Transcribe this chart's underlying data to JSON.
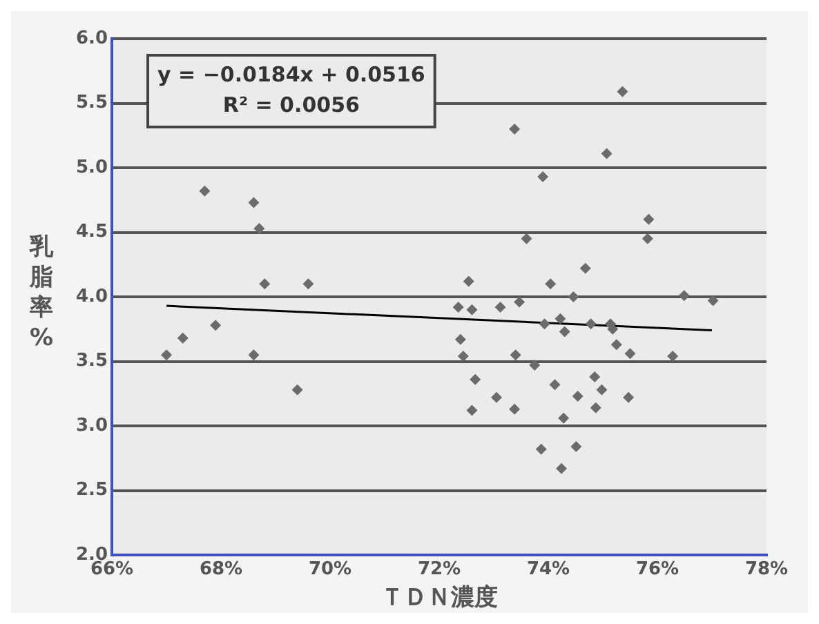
{
  "chart_data": {
    "type": "scatter",
    "xlabel": "ＴＤＮ濃度",
    "ylabel": "乳脂率%",
    "annotations": [
      "y = −0.0184x + 0.0516",
      "R² = 0.0056"
    ],
    "xlim": [
      66,
      78
    ],
    "xticks": [
      {
        "value": 66,
        "label": "66%"
      },
      {
        "value": 68,
        "label": "68%"
      },
      {
        "value": 70,
        "label": "70%"
      },
      {
        "value": 72,
        "label": "72%"
      },
      {
        "value": 74,
        "label": "74%"
      },
      {
        "value": 76,
        "label": "76%"
      },
      {
        "value": 78,
        "label": "78%"
      }
    ],
    "ylim": [
      2,
      6
    ],
    "yticks": [
      {
        "value": 2,
        "label": "2.0"
      },
      {
        "value": 2.5,
        "label": "2.5"
      },
      {
        "value": 3,
        "label": "3.0"
      },
      {
        "value": 3.5,
        "label": "3.5"
      },
      {
        "value": 4,
        "label": "4.0"
      },
      {
        "value": 4.5,
        "label": "4.5"
      },
      {
        "value": 5,
        "label": "5.0"
      },
      {
        "value": 5.5,
        "label": "5.5"
      },
      {
        "value": 6,
        "label": "6.0"
      }
    ],
    "grid": "y",
    "legend": false,
    "marker": "diamond",
    "series": [
      {
        "type": "scatter",
        "color": "#6b6b6b",
        "x": [
          67.0,
          67.3,
          67.7,
          67.9,
          68.6,
          68.7,
          68.6,
          68.8,
          69.4,
          69.6,
          75.36,
          73.38,
          75.07,
          73.9,
          75.84,
          75.82,
          73.6,
          74.68,
          72.54,
          74.04,
          74.46,
          76.49,
          77.02,
          73.47,
          73.12,
          72.35,
          72.6,
          73.93,
          74.22,
          74.3,
          74.78,
          75.14,
          75.18,
          75.25,
          72.39,
          72.44,
          73.4,
          73.75,
          75.5,
          76.28,
          72.66,
          74.12,
          74.85,
          74.98,
          74.54,
          73.05,
          75.47,
          72.6,
          73.38,
          74.87,
          74.28,
          73.87,
          74.51,
          74.24
        ],
        "values": [
          3.55,
          3.68,
          4.82,
          3.78,
          4.73,
          4.53,
          3.55,
          4.1,
          3.28,
          4.1,
          5.59,
          5.3,
          5.11,
          4.93,
          4.6,
          4.45,
          4.45,
          4.22,
          4.12,
          4.1,
          4.0,
          4.01,
          3.97,
          3.96,
          3.92,
          3.92,
          3.9,
          3.79,
          3.83,
          3.73,
          3.79,
          3.79,
          3.75,
          3.63,
          3.67,
          3.54,
          3.55,
          3.47,
          3.56,
          3.54,
          3.36,
          3.32,
          3.38,
          3.28,
          3.23,
          3.22,
          3.22,
          3.12,
          3.13,
          3.14,
          3.06,
          2.82,
          2.84,
          2.67
        ]
      },
      {
        "type": "line",
        "color": "#000000",
        "marker": "none",
        "x": [
          67,
          77
        ],
        "values": [
          3.93,
          3.74
        ]
      }
    ]
  }
}
